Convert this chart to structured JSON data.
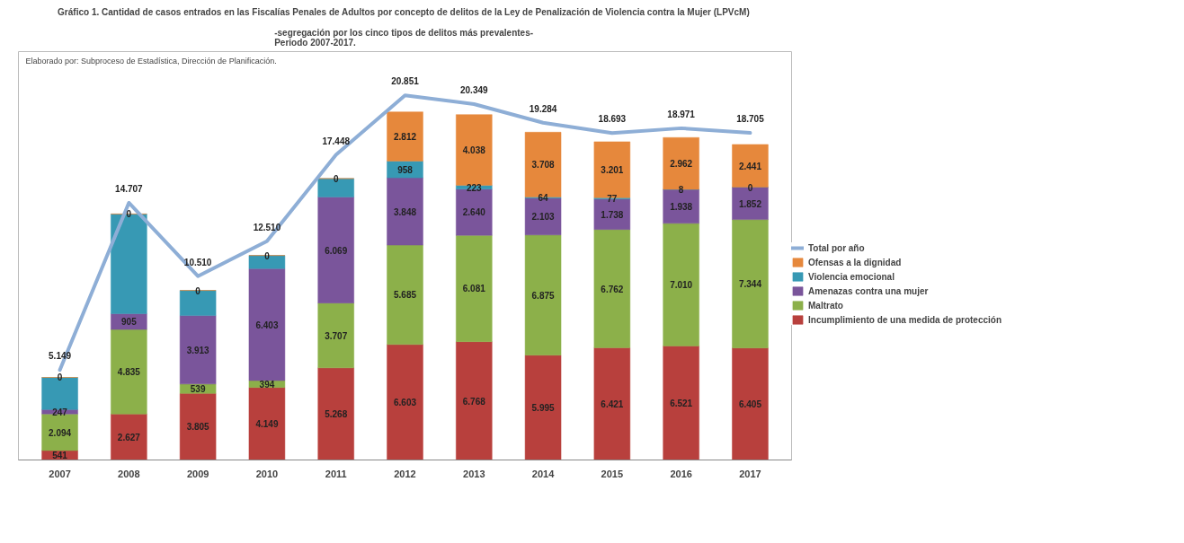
{
  "chart_data": {
    "type": "bar",
    "stacked": true,
    "title": "Gráfico 1. Cantidad de casos entrados en las Fiscalías Penales de Adultos por concepto de delitos de  la Ley de Penalización de Violencia contra la Mujer (LPVcM)",
    "subtitle": "-segregación por los cinco tipos de delitos  más prevalentes-\nPeriodo 2007-2017.",
    "annotations": [
      "Elaborado por: Subproceso de Estadística, Dirección de Planificación."
    ],
    "categories": [
      "2007",
      "2008",
      "2009",
      "2010",
      "2011",
      "2012",
      "2013",
      "2014",
      "2015",
      "2016",
      "2017"
    ],
    "legend": "right",
    "grid": false,
    "series": [
      {
        "name": "Incumplimiento de una medida de protección",
        "color": "#b8403d",
        "values": [
          541,
          2627,
          3805,
          4149,
          5268,
          6603,
          6768,
          5995,
          6421,
          6521,
          6405
        ],
        "value_labels": [
          "541",
          "2.627",
          "3.805",
          "4.149",
          "5.268",
          "6.603",
          "6.768",
          "5.995",
          "6.421",
          "6.521",
          "6.405"
        ]
      },
      {
        "name": "Maltrato",
        "color": "#8cb04a",
        "values": [
          2094,
          4835,
          539,
          394,
          3707,
          5685,
          6081,
          6875,
          6762,
          7010,
          7344
        ],
        "value_labels": [
          "2.094",
          "4.835",
          "539",
          "394",
          "3.707",
          "5.685",
          "6.081",
          "6.875",
          "6.762",
          "7.010",
          "7.344"
        ]
      },
      {
        "name": "Amenazas contra una mujer",
        "color": "#7a559b",
        "values": [
          247,
          905,
          3913,
          6403,
          6069,
          3848,
          2640,
          2103,
          1738,
          1938,
          1852
        ],
        "value_labels": [
          "247",
          "905",
          "3.913",
          "6.403",
          "6.069",
          "3.848",
          "2.640",
          "2.103",
          "1.738",
          "1.938",
          "1.852"
        ]
      },
      {
        "name": "Violencia emocional",
        "color": "#3799b4",
        "values": [
          1840,
          5700,
          1440,
          750,
          1050,
          958,
          223,
          64,
          77,
          8,
          0
        ],
        "value_labels": [
          null,
          null,
          null,
          null,
          null,
          "958",
          "223",
          "64",
          "77",
          "8",
          "0"
        ]
      },
      {
        "name": "Ofensas a la dignidad",
        "color": "#e6883c",
        "values": [
          0,
          0,
          0,
          0,
          0,
          2812,
          4038,
          3708,
          3201,
          2962,
          2441
        ],
        "value_labels": [
          "0",
          "0",
          "0",
          "0",
          "0",
          "2.812",
          "4.038",
          "3.708",
          "3.201",
          "2.962",
          "2.441"
        ]
      },
      {
        "name": "Total por año",
        "type": "line",
        "color": "#8eaed6",
        "values": [
          5149,
          14707,
          10510,
          12510,
          17448,
          20851,
          20349,
          19284,
          18693,
          18971,
          18705
        ],
        "value_labels": [
          "5.149",
          "14.707",
          "10.510",
          "12.510",
          "17.448",
          "20.851",
          "20.349",
          "19.284",
          "18.693",
          "18.971",
          "18.705"
        ]
      }
    ]
  }
}
